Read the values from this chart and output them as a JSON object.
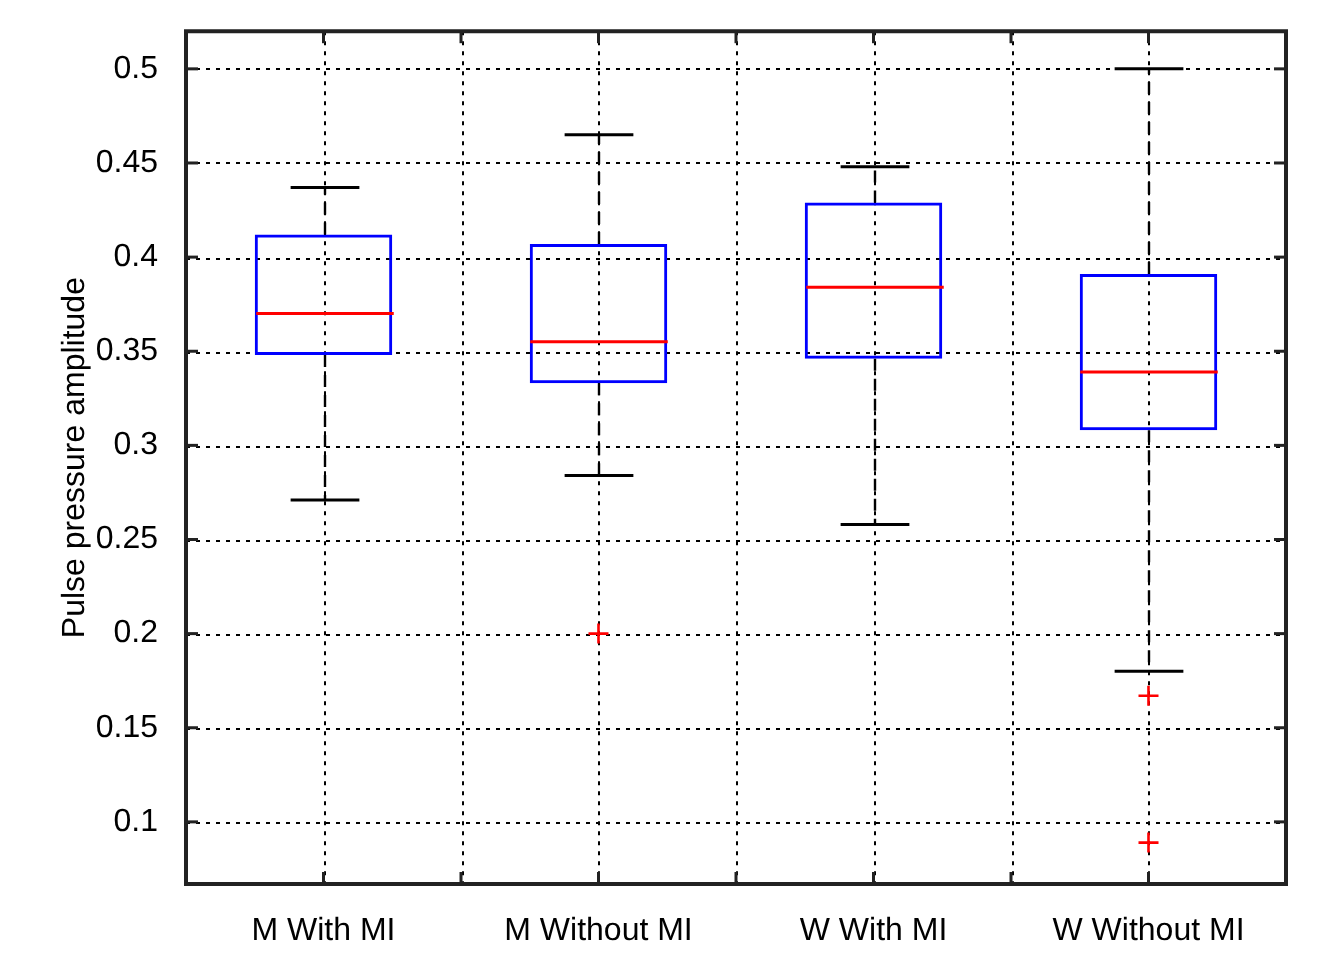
{
  "chart_data": {
    "type": "box",
    "ylabel": "Pulse pressure amplitude",
    "categories": [
      "M With MI",
      "M Without MI",
      "W With MI",
      "W Without MI"
    ],
    "color": "#0000ff",
    "boxes": [
      {
        "low": 0.271,
        "q1": 0.348,
        "median": 0.37,
        "q3": 0.412,
        "high": 0.437
      },
      {
        "low": 0.284,
        "q1": 0.333,
        "median": 0.355,
        "q3": 0.407,
        "high": 0.465,
        "outliers": [
          0.2
        ]
      },
      {
        "low": 0.258,
        "q1": 0.346,
        "median": 0.384,
        "q3": 0.429,
        "high": 0.448
      },
      {
        "low": 0.18,
        "q1": 0.308,
        "median": 0.339,
        "q3": 0.391,
        "high": 0.5,
        "outliers": [
          0.167,
          0.089
        ]
      }
    ],
    "ylim": [
      0.067,
      0.52
    ],
    "yticks": [
      0.1,
      0.15,
      0.2,
      0.25,
      0.3,
      0.35,
      0.4,
      0.45,
      0.5
    ],
    "grid": true,
    "marker": "cross"
  }
}
